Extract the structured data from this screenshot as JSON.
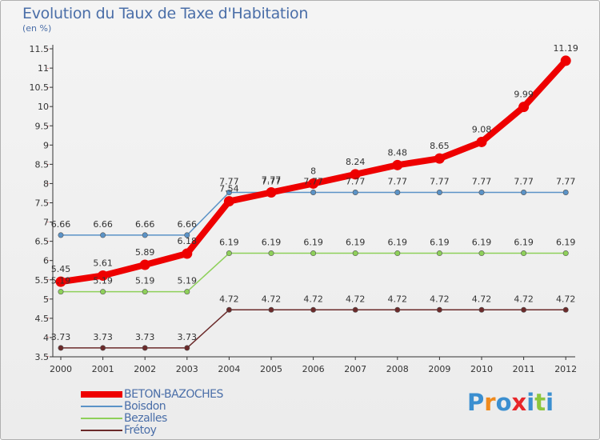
{
  "header": {
    "title": "Evolution du Taux de Taxe d'Habitation",
    "subtitle": "(en %)"
  },
  "logo": {
    "text": "Proxiti",
    "letters": [
      "P",
      "r",
      "o",
      "x",
      "i",
      "t",
      "i"
    ],
    "colors": [
      "#3b8fd0",
      "#f08a1c",
      "#3b8fd0",
      "#e8262a",
      "#3b8fd0",
      "#8cc63e",
      "#3b8fd0"
    ]
  },
  "chart_data": {
    "type": "line",
    "title": "Evolution du Taux de Taxe d'Habitation",
    "ylabel": "(en %)",
    "xlabel": "",
    "categories": [
      "2000",
      "2001",
      "2002",
      "2003",
      "2004",
      "2005",
      "2006",
      "2007",
      "2008",
      "2009",
      "2010",
      "2011",
      "2012"
    ],
    "ylim": [
      3.5,
      11.5
    ],
    "yticks": [
      "3.5",
      "4",
      "4.5",
      "5",
      "5.5",
      "6",
      "6.5",
      "7",
      "7.5",
      "8",
      "8.5",
      "9",
      "9.5",
      "10",
      "10.5",
      "11",
      "11.5"
    ],
    "grid": false,
    "legend_position": "bottom-left",
    "series": [
      {
        "name": "BETON-BAZOCHES",
        "color": "#ee0000",
        "emphasis": true,
        "values": [
          5.45,
          5.61,
          5.89,
          6.18,
          7.54,
          7.77,
          8,
          8.24,
          8.48,
          8.65,
          9.08,
          9.99,
          11.19
        ],
        "labels": [
          "5.45",
          "5.61",
          "5.89",
          "6.18",
          "7.54",
          "7.77",
          "8",
          "8.24",
          "8.48",
          "8.65",
          "9.08",
          "9.99",
          "11.19"
        ]
      },
      {
        "name": "Boisdon",
        "color": "#5b93c7",
        "emphasis": false,
        "values": [
          6.66,
          6.66,
          6.66,
          6.66,
          7.77,
          7.77,
          7.77,
          7.77,
          7.77,
          7.77,
          7.77,
          7.77,
          7.77
        ],
        "labels": [
          "6.66",
          "6.66",
          "6.66",
          "6.66",
          "7.77",
          "7.77",
          "7.77",
          "7.77",
          "7.77",
          "7.77",
          "7.77",
          "7.77",
          "7.77"
        ]
      },
      {
        "name": "Bezalles",
        "color": "#8ed05a",
        "emphasis": false,
        "values": [
          5.19,
          5.19,
          5.19,
          5.19,
          6.19,
          6.19,
          6.19,
          6.19,
          6.19,
          6.19,
          6.19,
          6.19,
          6.19
        ],
        "labels": [
          "5.19",
          "5.19",
          "5.19",
          "5.19",
          "6.19",
          "6.19",
          "6.19",
          "6.19",
          "6.19",
          "6.19",
          "6.19",
          "6.19",
          "6.19"
        ]
      },
      {
        "name": "Frétoy",
        "color": "#6b2a2a",
        "emphasis": false,
        "values": [
          3.73,
          3.73,
          3.73,
          3.73,
          4.72,
          4.72,
          4.72,
          4.72,
          4.72,
          4.72,
          4.72,
          4.72,
          4.72
        ],
        "labels": [
          "3.73",
          "3.73",
          "3.73",
          "3.73",
          "4.72",
          "4.72",
          "4.72",
          "4.72",
          "4.72",
          "4.72",
          "4.72",
          "4.72",
          "4.72"
        ]
      }
    ]
  }
}
